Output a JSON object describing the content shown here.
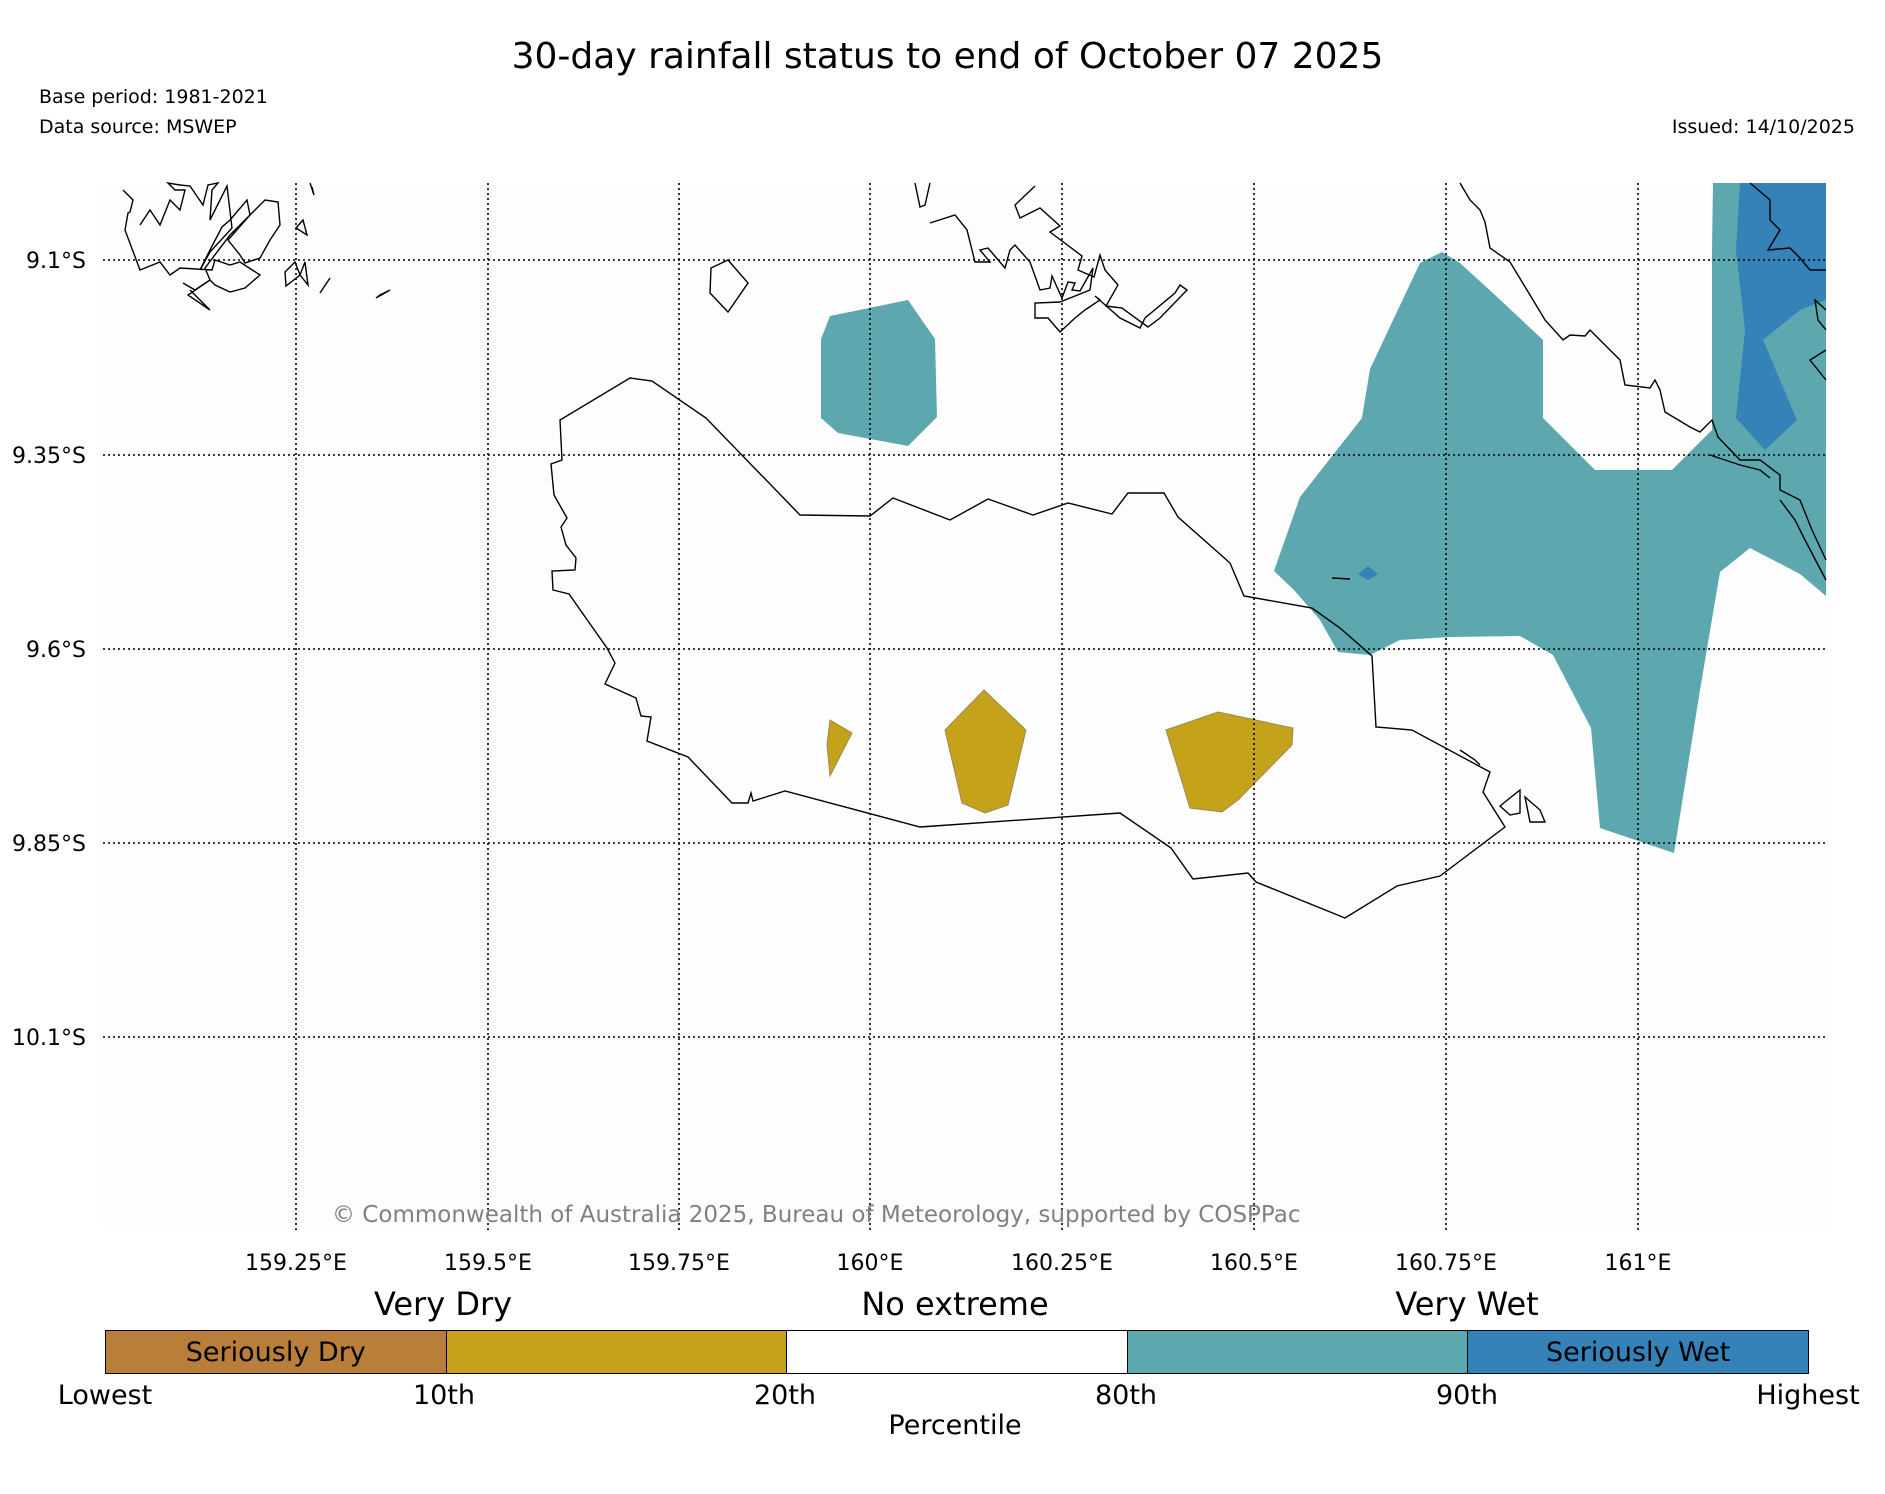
{
  "title": "30-day rainfall status to end of October 07 2025",
  "base_period": "Base period: 1981-2021",
  "data_source": "Data source: MSWEP",
  "issued": "Issued: 14/10/2025",
  "copyright": "© Commonwealth of Australia 2025, Bureau of Meteorology, supported by COSPPac",
  "map": {
    "lat_labels": [
      "9.1°S",
      "9.35°S",
      "9.6°S",
      "9.85°S",
      "10.1°S"
    ],
    "lon_labels": [
      "159.25°E",
      "159.5°E",
      "159.75°E",
      "160°E",
      "160.25°E",
      "160.5°E",
      "160.75°E",
      "161°E"
    ],
    "shaded_regions": [
      {
        "category": "Very Wet",
        "description": "north-west of Guadalcanal"
      },
      {
        "category": "Very Wet",
        "description": "north-east and east Guadalcanal"
      },
      {
        "category": "Seriously Wet",
        "description": "far east near Malaita"
      },
      {
        "category": "Very Dry",
        "description": "southern Guadalcanal"
      }
    ]
  },
  "legend": {
    "categories": [
      "Very Dry",
      "No extreme",
      "Very Wet"
    ],
    "cells": [
      {
        "label": "Seriously Dry",
        "color": "#b97f3a"
      },
      {
        "label": "",
        "color": "#c4a31a"
      },
      {
        "label": "",
        "color": "#ffffff"
      },
      {
        "label": "",
        "color": "#5ca8ae"
      },
      {
        "label": "Seriously Wet",
        "color": "#3482b8"
      }
    ],
    "ticks": [
      "Lowest",
      "10th",
      "20th",
      "80th",
      "90th",
      "Highest"
    ],
    "axis_label": "Percentile"
  }
}
